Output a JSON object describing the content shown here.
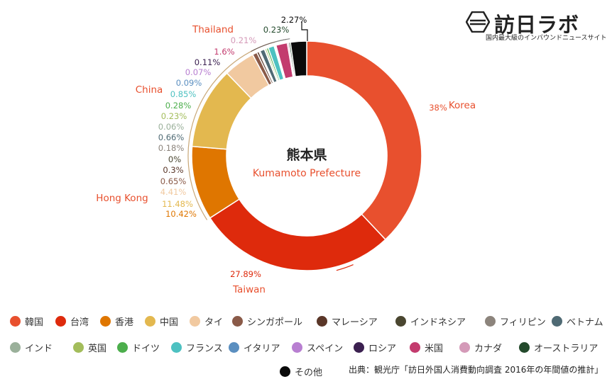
{
  "logo": {
    "name": "訪日ラボ",
    "subtitle": "国内最大級のインバウンドニュースサイト"
  },
  "chart_data": {
    "type": "donut",
    "center_title": "熊本県",
    "center_subtitle": "Kumamoto Prefecture",
    "source": "出典：観光庁「訪日外国人消費動向調査 2016年の年間値の推計」",
    "slices": [
      {
        "legend": "韓国",
        "callout": "Korea",
        "value": 38,
        "label": "38%",
        "color": "#e8502e"
      },
      {
        "legend": "台湾",
        "callout": "Taiwan",
        "value": 27.89,
        "label": "27.89%",
        "color": "#de2a0c"
      },
      {
        "legend": "香港",
        "callout": "Hong Kong",
        "value": 10.42,
        "label": "10.42%",
        "color": "#df7600"
      },
      {
        "legend": "中国",
        "callout": "China",
        "value": 11.48,
        "label": "11.48%",
        "color": "#e3b84f"
      },
      {
        "legend": "タイ",
        "callout": "Thailand",
        "value": 4.41,
        "label": "4.41%",
        "color": "#f1c9a0"
      },
      {
        "legend": "シンガポール",
        "value": 0.65,
        "label": "0.65%",
        "color": "#8a5a48"
      },
      {
        "legend": "マレーシア",
        "value": 0.3,
        "label": "0.3%",
        "color": "#5a3628"
      },
      {
        "legend": "インドネシア",
        "value": 0,
        "label": "0%",
        "color": "#4a4630"
      },
      {
        "legend": "フィリピン",
        "value": 0.18,
        "label": "0.18%",
        "color": "#8c847c"
      },
      {
        "legend": "ベトナム",
        "value": 0.66,
        "label": "0.66%",
        "color": "#4f6a74"
      },
      {
        "legend": "インド",
        "value": 0.06,
        "label": "0.06%",
        "color": "#9ab09a"
      },
      {
        "legend": "英国",
        "value": 0.23,
        "label": "0.23%",
        "color": "#a3bd5b"
      },
      {
        "legend": "ドイツ",
        "value": 0.28,
        "label": "0.28%",
        "color": "#4cae4c"
      },
      {
        "legend": "フランス",
        "value": 0.85,
        "label": "0.85%",
        "color": "#4dc1c1"
      },
      {
        "legend": "イタリア",
        "value": 0.09,
        "label": "0.09%",
        "color": "#5b8fc0"
      },
      {
        "legend": "スペイン",
        "value": 0.07,
        "label": "0.07%",
        "color": "#b87fd1"
      },
      {
        "legend": "ロシア",
        "value": 0.11,
        "label": "0.11%",
        "color": "#3b2050"
      },
      {
        "legend": "米国",
        "value": 1.6,
        "label": "1.6%",
        "color": "#c33b6e"
      },
      {
        "legend": "カナダ",
        "value": 0.21,
        "label": "0.21%",
        "color": "#d49ab8"
      },
      {
        "legend": "オーストラリア",
        "value": 0.23,
        "label": "0.23%",
        "color": "#234a2c"
      },
      {
        "legend": "その他",
        "value": 2.27,
        "label": "2.27%",
        "color": "#0a0a0a"
      }
    ]
  }
}
